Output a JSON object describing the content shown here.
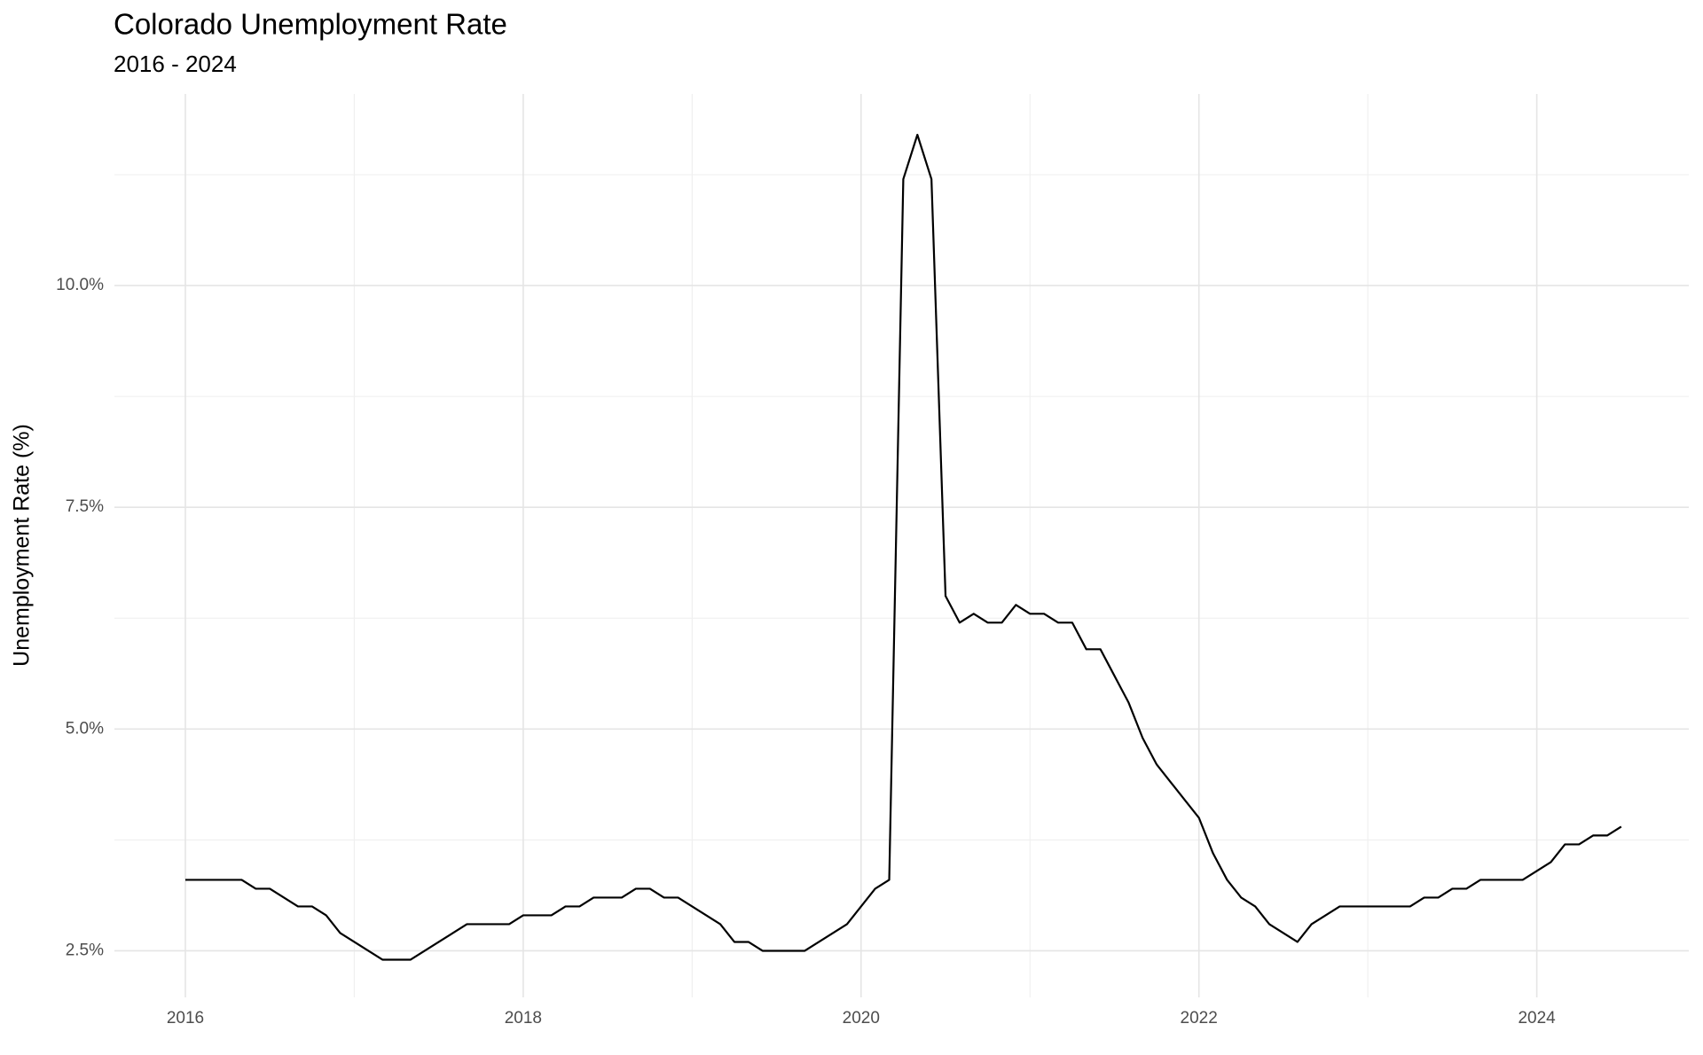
{
  "chart_data": {
    "type": "line",
    "title": "Colorado Unemployment Rate",
    "subtitle": "2016 - 2024",
    "y_label": "Unemployment Rate (%)",
    "x": [
      "2016-01",
      "2016-02",
      "2016-03",
      "2016-04",
      "2016-05",
      "2016-06",
      "2016-07",
      "2016-08",
      "2016-09",
      "2016-10",
      "2016-11",
      "2016-12",
      "2017-01",
      "2017-02",
      "2017-03",
      "2017-04",
      "2017-05",
      "2017-06",
      "2017-07",
      "2017-08",
      "2017-09",
      "2017-10",
      "2017-11",
      "2017-12",
      "2018-01",
      "2018-02",
      "2018-03",
      "2018-04",
      "2018-05",
      "2018-06",
      "2018-07",
      "2018-08",
      "2018-09",
      "2018-10",
      "2018-11",
      "2018-12",
      "2019-01",
      "2019-02",
      "2019-03",
      "2019-04",
      "2019-05",
      "2019-06",
      "2019-07",
      "2019-08",
      "2019-09",
      "2019-10",
      "2019-11",
      "2019-12",
      "2020-01",
      "2020-02",
      "2020-03",
      "2020-04",
      "2020-05",
      "2020-06",
      "2020-07",
      "2020-08",
      "2020-09",
      "2020-10",
      "2020-11",
      "2020-12",
      "2021-01",
      "2021-02",
      "2021-03",
      "2021-04",
      "2021-05",
      "2021-06",
      "2021-07",
      "2021-08",
      "2021-09",
      "2021-10",
      "2021-11",
      "2021-12",
      "2022-01",
      "2022-02",
      "2022-03",
      "2022-04",
      "2022-05",
      "2022-06",
      "2022-07",
      "2022-08",
      "2022-09",
      "2022-10",
      "2022-11",
      "2022-12",
      "2023-01",
      "2023-02",
      "2023-03",
      "2023-04",
      "2023-05",
      "2023-06",
      "2023-07",
      "2023-08",
      "2023-09",
      "2023-10",
      "2023-11",
      "2023-12",
      "2024-01",
      "2024-02",
      "2024-03",
      "2024-04",
      "2024-05",
      "2024-06",
      "2024-07"
    ],
    "values": [
      3.3,
      3.3,
      3.3,
      3.3,
      3.3,
      3.2,
      3.2,
      3.1,
      3.0,
      3.0,
      2.9,
      2.7,
      2.6,
      2.5,
      2.4,
      2.4,
      2.4,
      2.5,
      2.6,
      2.7,
      2.8,
      2.8,
      2.8,
      2.8,
      2.9,
      2.9,
      2.9,
      3.0,
      3.0,
      3.1,
      3.1,
      3.1,
      3.2,
      3.2,
      3.1,
      3.1,
      3.0,
      2.9,
      2.8,
      2.6,
      2.6,
      2.5,
      2.5,
      2.5,
      2.5,
      2.6,
      2.7,
      2.8,
      3.0,
      3.2,
      3.3,
      11.2,
      11.7,
      11.2,
      6.5,
      6.2,
      6.3,
      6.2,
      6.2,
      6.4,
      6.3,
      6.3,
      6.2,
      6.2,
      5.9,
      5.9,
      5.6,
      5.3,
      4.9,
      4.6,
      4.4,
      4.2,
      4.0,
      3.6,
      3.3,
      3.1,
      3.0,
      2.8,
      2.7,
      2.6,
      2.8,
      2.9,
      3.0,
      3.0,
      3.0,
      3.0,
      3.0,
      3.0,
      3.1,
      3.1,
      3.2,
      3.2,
      3.3,
      3.3,
      3.3,
      3.3,
      3.4,
      3.5,
      3.7,
      3.7,
      3.8,
      3.8,
      3.9
    ],
    "color": "#000000",
    "xlim": [
      2015.58,
      2024.9
    ],
    "ylim": [
      1.975,
      12.16
    ],
    "xticks": [
      2016,
      2018,
      2020,
      2022,
      2024
    ],
    "x_minor_ticks": [
      2017,
      2019,
      2021,
      2023
    ],
    "yticks": [
      {
        "value": 2.5,
        "label": "2.5%"
      },
      {
        "value": 5.0,
        "label": "5.0%"
      },
      {
        "value": 7.5,
        "label": "7.5%"
      },
      {
        "value": 10.0,
        "label": "10.0%"
      }
    ],
    "y_minor_ticks": [
      3.75,
      6.25,
      8.75,
      11.25
    ],
    "grid": true
  }
}
